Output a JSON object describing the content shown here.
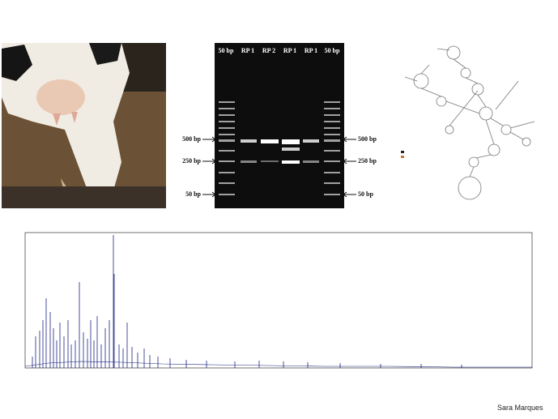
{
  "gel": {
    "lane_labels": [
      "50 bp",
      "RP 1",
      "RP 2",
      "RP 1",
      "RP 1",
      "50 bp"
    ],
    "left_markers": [
      "500 bp",
      "250 bp",
      "50 bp"
    ],
    "right_markers": [
      "500 bp",
      "250 bp",
      "50 bp"
    ]
  },
  "footer": {
    "author": "Sara Marques"
  }
}
